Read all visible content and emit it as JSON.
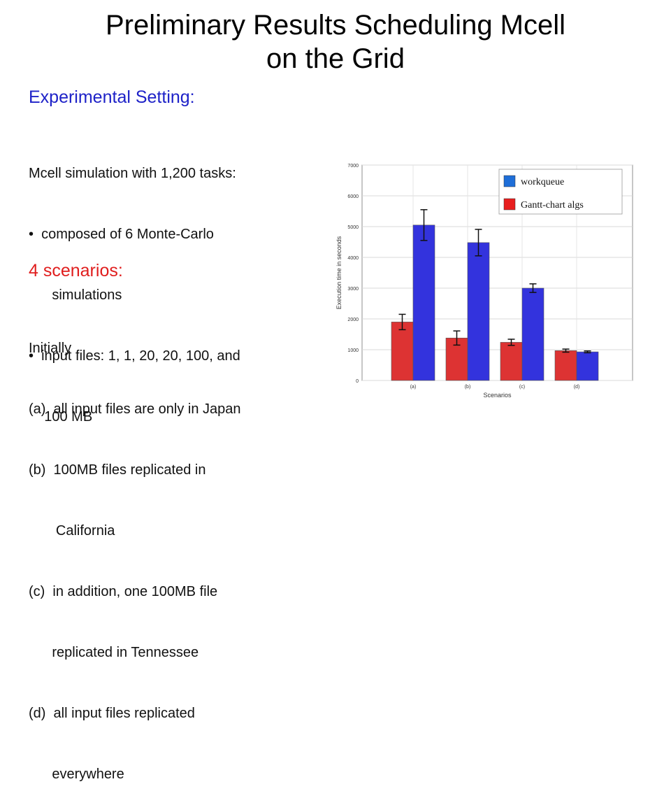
{
  "slide": {
    "title_line1": "Preliminary Results Scheduling Mcell",
    "title_line2": "on the Grid",
    "heading_setting": "Experimental  Setting:",
    "setting_lines": [
      "Mcell simulation with 1,200 tasks:",
      "•  composed of 6 Monte-Carlo",
      "      simulations",
      "•  input files: 1, 1, 20, 20, 100, and",
      "    100 MB"
    ],
    "heading_scenarios": "4 scenarios:",
    "scenario_lines": [
      "Initially",
      "(a)  all input files are only in Japan",
      "(b)  100MB files replicated in",
      "       California",
      "(c)  in addition, one 100MB file",
      "      replicated in Tennessee",
      "(d)  all input files replicated",
      "      everywhere"
    ]
  },
  "chart_data": {
    "type": "bar",
    "categories": [
      "(a)",
      "(b)",
      "(c)",
      "(d)"
    ],
    "xlabel": "Scenarios",
    "ylabel": "Execution time in seconds",
    "ylim": [
      0,
      7000
    ],
    "yticks": [
      0,
      1000,
      2000,
      3000,
      4000,
      5000,
      6000,
      7000
    ],
    "grid": true,
    "legend_position": "top-right",
    "series": [
      {
        "name": "Gantt-chart algs",
        "color": "#dd3333",
        "values": [
          1900,
          1380,
          1240,
          970
        ],
        "error": [
          250,
          230,
          100,
          50
        ]
      },
      {
        "name": "workqueue",
        "color": "#3333dd",
        "values": [
          5050,
          4480,
          3000,
          930
        ],
        "error": [
          500,
          430,
          140,
          30
        ]
      }
    ],
    "legend_order": [
      "workqueue",
      "Gantt-chart algs"
    ]
  }
}
